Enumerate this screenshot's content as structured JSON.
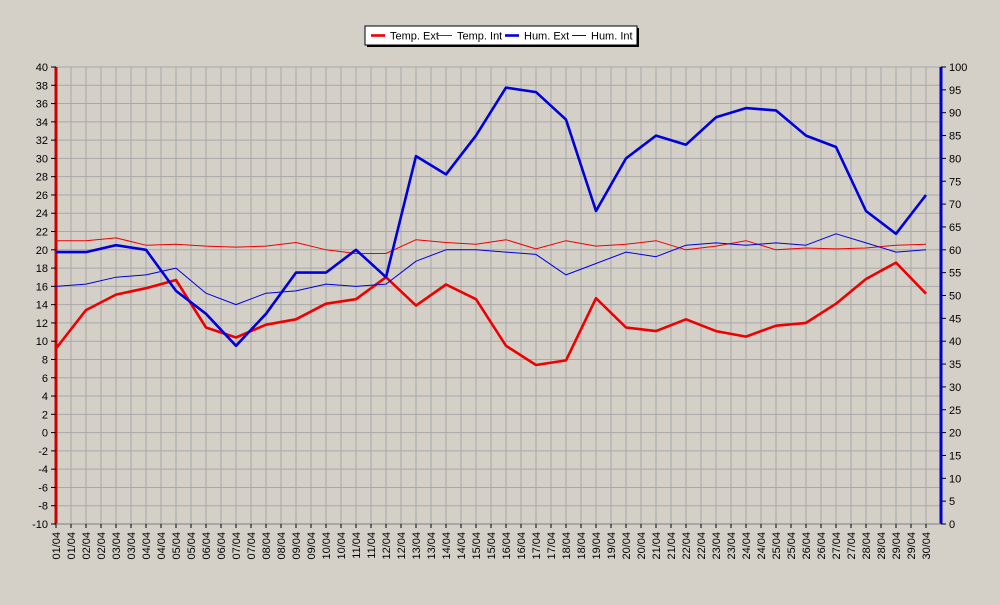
{
  "chart_data": {
    "type": "line",
    "x": [
      "01/04",
      "02/04",
      "03/04",
      "04/04",
      "05/04",
      "06/04",
      "07/04",
      "08/04",
      "09/04",
      "10/04",
      "11/04",
      "12/04",
      "13/04",
      "14/04",
      "15/04",
      "16/04",
      "17/04",
      "18/04",
      "19/04",
      "20/04",
      "21/04",
      "22/04",
      "23/04",
      "24/04",
      "25/04",
      "26/04",
      "27/04",
      "28/04",
      "29/04",
      "30/04"
    ],
    "x_tick_labels": [
      "01/04",
      "01/04",
      "02/04",
      "02/04",
      "03/04",
      "03/04",
      "04/04",
      "04/04",
      "05/04",
      "05/04",
      "06/04",
      "06/04",
      "07/04",
      "07/04",
      "08/04",
      "08/04",
      "09/04",
      "09/04",
      "10/04",
      "10/04",
      "11/04",
      "11/04",
      "12/04",
      "12/04",
      "13/04",
      "13/04",
      "14/04",
      "14/04",
      "15/04",
      "15/04",
      "16/04",
      "16/04",
      "17/04",
      "17/04",
      "18/04",
      "18/04",
      "19/04",
      "19/04",
      "20/04",
      "20/04",
      "21/04",
      "21/04",
      "22/04",
      "22/04",
      "23/04",
      "23/04",
      "24/04",
      "24/04",
      "25/04",
      "25/04",
      "26/04",
      "26/04",
      "27/04",
      "27/04",
      "28/04",
      "28/04",
      "29/04",
      "29/04",
      "30/04"
    ],
    "y_left": {
      "min": -10,
      "max": 40,
      "step": 2,
      "color": "#cc0000"
    },
    "y_right": {
      "min": 0,
      "max": 100,
      "step": 5,
      "color": "#0000cc"
    },
    "grid": true,
    "legend_position": "top-center",
    "series": [
      {
        "name": "Temp. Ext",
        "axis": "left",
        "color": "#ee0000",
        "width": "thick",
        "values": [
          9.2,
          13.4,
          15.1,
          15.8,
          16.7,
          11.5,
          10.4,
          11.8,
          12.4,
          14.1,
          14.6,
          17.0,
          13.9,
          16.2,
          14.6,
          9.5,
          7.4,
          7.9,
          14.7,
          11.5,
          11.1,
          12.4,
          11.1,
          10.5,
          11.7,
          12.0,
          14.1,
          16.8,
          18.6,
          15.2
        ]
      },
      {
        "name": "Temp. Int",
        "axis": "left",
        "color": "#ee0000",
        "width": "thin",
        "values": [
          21.0,
          21.0,
          21.3,
          20.5,
          20.6,
          20.4,
          20.3,
          20.4,
          20.8,
          20.0,
          19.6,
          19.6,
          21.1,
          20.8,
          20.6,
          21.1,
          20.1,
          21.0,
          20.4,
          20.6,
          21.0,
          20.0,
          20.4,
          21.0,
          20.0,
          20.2,
          20.1,
          20.2,
          20.5,
          20.6
        ]
      },
      {
        "name": "Hum. Ext",
        "axis": "right",
        "color": "#0000dd",
        "width": "thick",
        "values": [
          59.5,
          59.5,
          61.0,
          60.0,
          51.0,
          46.0,
          39.0,
          46.0,
          55.0,
          55.0,
          60.0,
          54.0,
          80.5,
          76.5,
          85.0,
          95.5,
          94.5,
          88.5,
          68.5,
          80.0,
          85.0,
          83.0,
          89.0,
          91.0,
          90.5,
          85.0,
          82.5,
          68.5,
          63.5,
          72.0
        ]
      },
      {
        "name": "Hum. Int",
        "axis": "right",
        "color": "#0000dd",
        "width": "thin",
        "values": [
          52.0,
          52.5,
          54.0,
          54.5,
          56.0,
          50.5,
          48.0,
          50.5,
          51.0,
          52.5,
          52.0,
          52.5,
          57.5,
          60.0,
          60.0,
          59.5,
          59.0,
          54.5,
          57.0,
          59.5,
          58.5,
          61.0,
          61.5,
          61.0,
          61.5,
          61.0,
          63.5,
          61.5,
          59.5,
          60.0
        ]
      }
    ]
  }
}
